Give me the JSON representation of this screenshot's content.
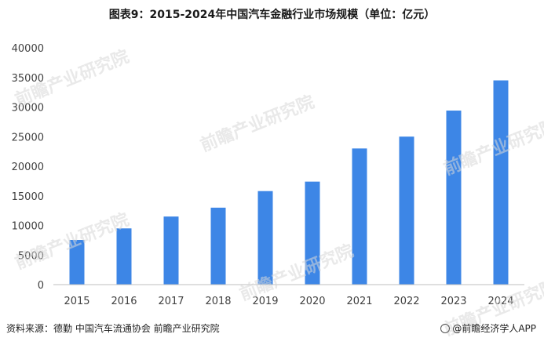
{
  "chart_data": {
    "type": "bar",
    "title": "图表9：2015-2024年中国汽车金融行业市场规模（单位：亿元）",
    "categories": [
      "2015",
      "2016",
      "2017",
      "2018",
      "2019",
      "2020",
      "2021",
      "2022",
      "2023",
      "2024"
    ],
    "values": [
      7550,
      9500,
      11500,
      13000,
      15800,
      17400,
      23000,
      25000,
      29400,
      34500
    ],
    "ylim": [
      0,
      40000
    ],
    "yticks": [
      0,
      5000,
      10000,
      15000,
      20000,
      25000,
      30000,
      35000,
      40000
    ],
    "bar_color": "#3d86e6",
    "grid": false,
    "legend": "none"
  },
  "footer": {
    "source": "资料来源：德勤 中国汽车流通协会  前瞻产业研究院",
    "credit": "@前瞻经济学人APP"
  },
  "watermark": "前瞻产业研究院"
}
